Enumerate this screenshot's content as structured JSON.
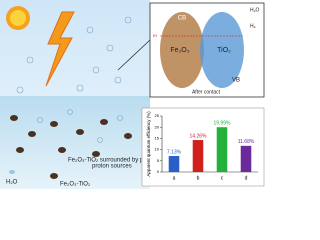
{
  "labels": {
    "caption": "Fe₂O₃-TiO₂ surrounded by proton sources",
    "water": "H₂O",
    "catalyst": "Fe₂O₃-TiO₂",
    "protons": "proton sources",
    "cb": "CB",
    "vb": "VB",
    "fe2o3": "Fe₂O₃",
    "tio2": "TiO₂",
    "after": "After contact",
    "h2o_top": "H₂O",
    "h2": "H₂",
    "ef": "Ef"
  },
  "chart_data": {
    "type": "bar",
    "ylabel": "Apparent quantum efficiency (%)",
    "categories": [
      "a",
      "b",
      "c",
      "d"
    ],
    "values": [
      7.13,
      14.26,
      19.99,
      11.68
    ],
    "value_labels": [
      "7.13%",
      "14.26%",
      "19.99%",
      "11.68%"
    ],
    "colors": [
      "#2a5fc8",
      "#d0201c",
      "#22b23a",
      "#6a2a9a"
    ],
    "ylim": [
      0,
      25
    ],
    "yticks": [
      0,
      5,
      10,
      15,
      20,
      25
    ]
  }
}
